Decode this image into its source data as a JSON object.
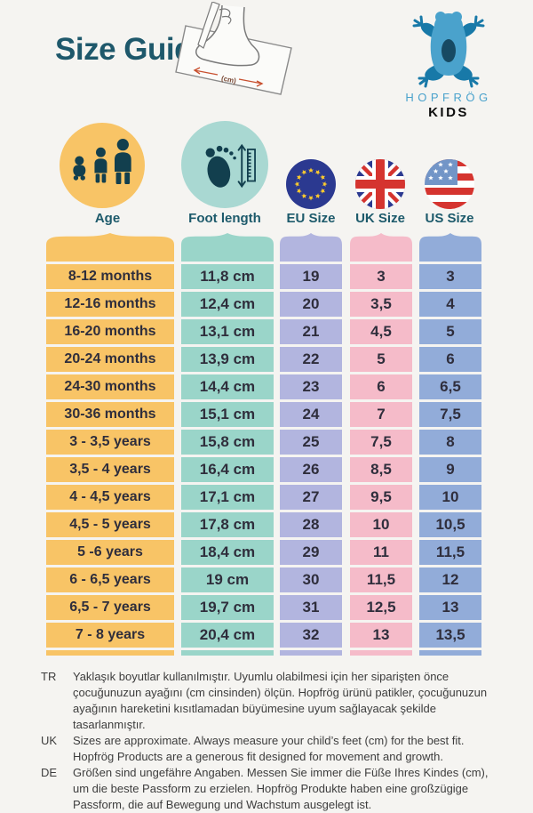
{
  "header": {
    "title": "Size Guide",
    "illustration_caption": "(cm)",
    "logo": {
      "brand": "HOPFRÖG",
      "sub": "KIDS"
    }
  },
  "table": {
    "columns": [
      {
        "key": "age",
        "label": "Age",
        "color": "#f8c466",
        "icon": "children-icon"
      },
      {
        "key": "foot",
        "label": "Foot length",
        "color": "#9ad5c9",
        "icon": "footprint-ruler-icon"
      },
      {
        "key": "eu",
        "label": "EU Size",
        "color": "#b2b5df",
        "icon": "eu-flag-icon"
      },
      {
        "key": "uk",
        "label": "UK Size",
        "color": "#f5bbc9",
        "icon": "uk-flag-icon"
      },
      {
        "key": "us",
        "label": "US Size",
        "color": "#92acd9",
        "icon": "us-flag-icon"
      }
    ],
    "rows": [
      [
        "8-12 months",
        "11,8 cm",
        "19",
        "3",
        "3"
      ],
      [
        "12-16 months",
        "12,4 cm",
        "20",
        "3,5",
        "4"
      ],
      [
        "16-20 months",
        "13,1 cm",
        "21",
        "4,5",
        "5"
      ],
      [
        "20-24 months",
        "13,9 cm",
        "22",
        "5",
        "6"
      ],
      [
        "24-30 months",
        "14,4 cm",
        "23",
        "6",
        "6,5"
      ],
      [
        "30-36 months",
        "15,1 cm",
        "24",
        "7",
        "7,5"
      ],
      [
        "3 - 3,5 years",
        "15,8 cm",
        "25",
        "7,5",
        "8"
      ],
      [
        "3,5 - 4 years",
        "16,4 cm",
        "26",
        "8,5",
        "9"
      ],
      [
        "4 - 4,5 years",
        "17,1 cm",
        "27",
        "9,5",
        "10"
      ],
      [
        "4,5 - 5 years",
        "17,8 cm",
        "28",
        "10",
        "10,5"
      ],
      [
        "5 -6 years",
        "18,4 cm",
        "29",
        "11",
        "11,5"
      ],
      [
        "6 - 6,5 years",
        "19 cm",
        "30",
        "11,5",
        "12"
      ],
      [
        "6,5 - 7 years",
        "19,7 cm",
        "31",
        "12,5",
        "13"
      ],
      [
        "7 - 8 years",
        "20,4 cm",
        "32",
        "13",
        "13,5"
      ]
    ]
  },
  "notes": [
    {
      "lang": "TR",
      "text": "Yaklaşık boyutlar kullanılmıştır. Uyumlu olabilmesi için her siparişten önce çocuğunuzun ayağını (cm cinsinden) ölçün. Hopfrög ürünü patikler, çocuğunuzun ayağının hareketini kısıtlamadan büyümesine uyum sağlayacak şekilde tasarlanmıştır."
    },
    {
      "lang": "UK",
      "text": "Sizes are approximate. Always measure your child’s feet (cm) for the best fit. Hopfrög Products are a generous fit designed for movement and growth."
    },
    {
      "lang": "DE",
      "text": "Größen sind ungefähre Angaben. Messen Sie immer die Füße Ihres Kindes (cm), um die beste Passform zu erzielen. Hopfrög Produkte haben eine großzügige Passform, die auf Bewegung und Wachstum ausgelegt ist."
    }
  ],
  "colors": {
    "background": "#f5f4f1",
    "title": "#1e586b",
    "header_label": "#1d5a6b",
    "cell_text": "#2f2e3c",
    "brand_blue": "#4aa2cc",
    "icon_dark": "#123f4e",
    "measure_arrow_red": "#c8502f"
  }
}
